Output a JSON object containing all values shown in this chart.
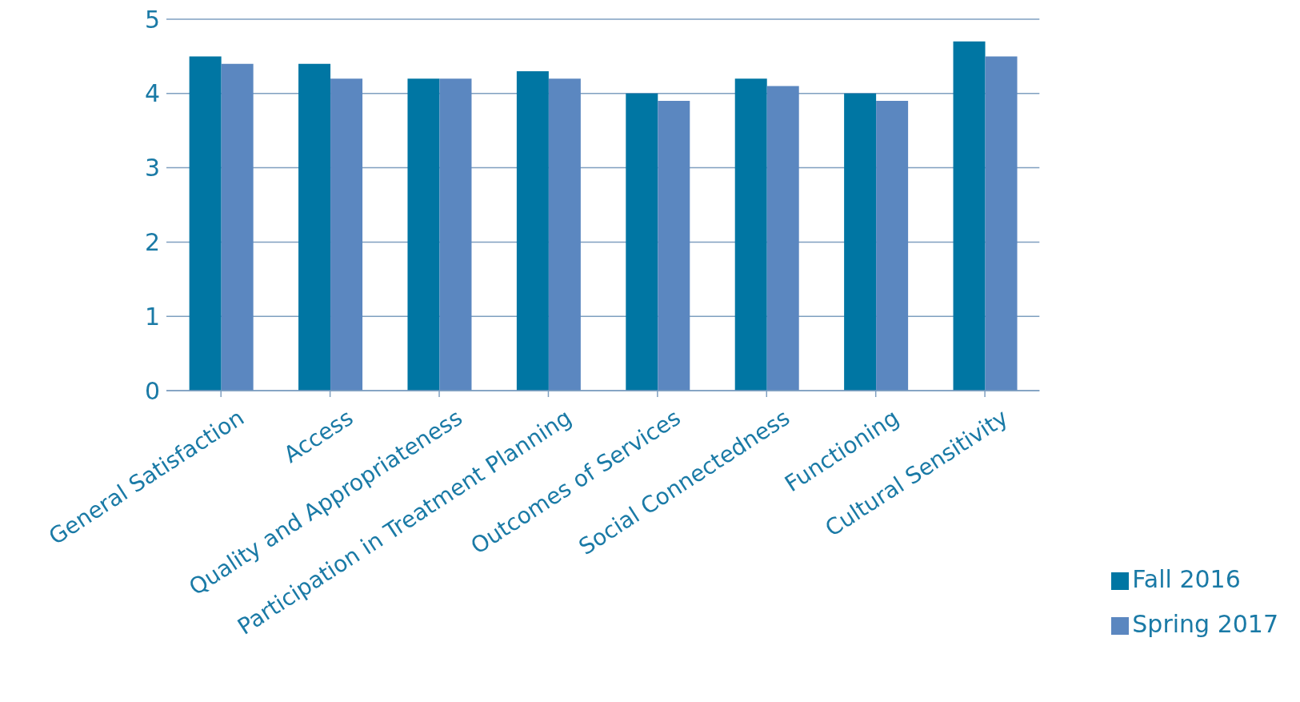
{
  "chart_data": {
    "type": "bar",
    "categories": [
      "General Satisfaction",
      "Access",
      "Quality and Appropriateness",
      "Participation in Treatment Planning",
      "Outcomes of Services",
      "Social Connectedness",
      "Functioning",
      "Cultural Sensitivity"
    ],
    "series": [
      {
        "name": "Fall 2016",
        "color": "#0076a3",
        "values": [
          4.5,
          4.4,
          4.2,
          4.3,
          4.0,
          4.2,
          4.0,
          4.7
        ]
      },
      {
        "name": "Spring 2017",
        "color": "#5b87c0",
        "values": [
          4.4,
          4.2,
          4.2,
          4.2,
          3.9,
          4.1,
          3.9,
          4.5
        ]
      }
    ],
    "ylim": [
      0,
      5
    ],
    "yticks": [
      0,
      1,
      2,
      3,
      4,
      5
    ],
    "grid": "y",
    "legend": "bottom right"
  }
}
